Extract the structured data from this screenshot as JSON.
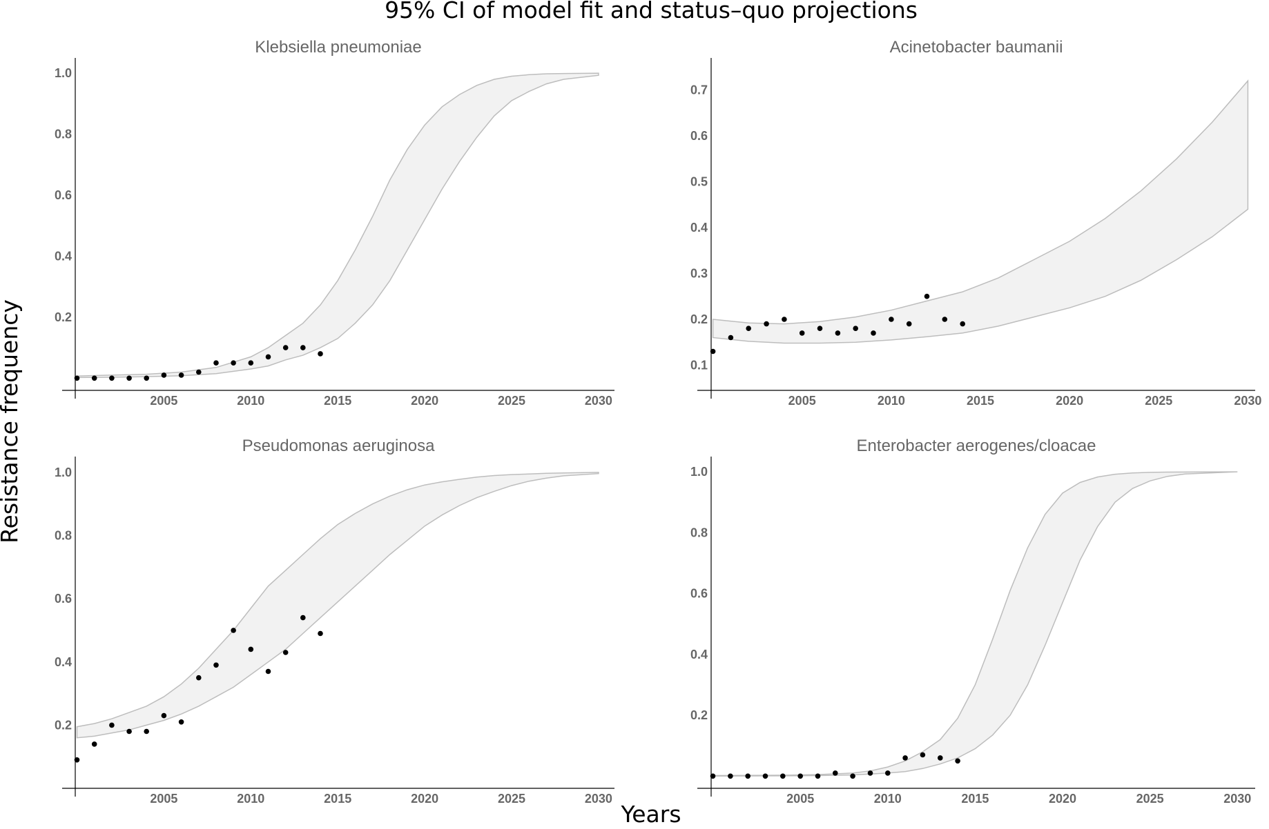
{
  "title": "95% CI of model fit and status–quo projections",
  "xlabel": "Years",
  "ylabel": "Resistance frequency",
  "chart_data": [
    {
      "type": "scatter",
      "title": "Klebsiella pneumoniae",
      "xlim": [
        1999.9,
        2030.6
      ],
      "ylim": [
        -0.04,
        1.05
      ],
      "x_ticks": [
        2005,
        2010,
        2015,
        2020,
        2025,
        2030
      ],
      "y_ticks": [
        0.2,
        0.4,
        0.6,
        0.8,
        1.0
      ],
      "y_tick_labels": [
        "0.2",
        "0.4",
        "0.6",
        "0.8",
        "1.0"
      ],
      "points": {
        "x": [
          2000,
          2001,
          2002,
          2003,
          2004,
          2005,
          2006,
          2007,
          2008,
          2009,
          2010,
          2011,
          2012,
          2013,
          2014
        ],
        "y": [
          0.0,
          0.0,
          0.0,
          0.0,
          0.0,
          0.01,
          0.01,
          0.02,
          0.05,
          0.05,
          0.05,
          0.07,
          0.1,
          0.1,
          0.08
        ]
      },
      "ci_upper": {
        "x": [
          2000,
          2002,
          2004,
          2006,
          2008,
          2010,
          2011,
          2012,
          2013,
          2014,
          2015,
          2016,
          2017,
          2018,
          2019,
          2020,
          2021,
          2022,
          2023,
          2024,
          2025,
          2026,
          2027,
          2028,
          2030
        ],
        "y": [
          0.007,
          0.01,
          0.013,
          0.02,
          0.035,
          0.07,
          0.1,
          0.14,
          0.18,
          0.24,
          0.32,
          0.42,
          0.53,
          0.65,
          0.75,
          0.83,
          0.89,
          0.93,
          0.96,
          0.98,
          0.99,
          0.995,
          0.998,
          0.999,
          1.0
        ]
      },
      "ci_lower": {
        "x": [
          2000,
          2002,
          2004,
          2006,
          2008,
          2010,
          2011,
          2012,
          2013,
          2014,
          2015,
          2016,
          2017,
          2018,
          2019,
          2020,
          2021,
          2022,
          2023,
          2024,
          2025,
          2026,
          2027,
          2028,
          2030
        ],
        "y": [
          0.002,
          0.003,
          0.005,
          0.008,
          0.015,
          0.03,
          0.04,
          0.06,
          0.075,
          0.1,
          0.13,
          0.18,
          0.24,
          0.32,
          0.42,
          0.52,
          0.62,
          0.71,
          0.79,
          0.86,
          0.91,
          0.94,
          0.965,
          0.98,
          0.993
        ]
      }
    },
    {
      "type": "scatter",
      "title": "Acinetobacter baumanii",
      "xlim": [
        1999.9,
        2030.1
      ],
      "ylim": [
        0.045,
        0.77
      ],
      "x_ticks": [
        2005,
        2010,
        2015,
        2020,
        2025,
        2030
      ],
      "y_ticks": [
        0.1,
        0.2,
        0.3,
        0.4,
        0.5,
        0.6,
        0.7
      ],
      "y_tick_labels": [
        "0.1",
        "0.2",
        "0.3",
        "0.4",
        "0.5",
        "0.6",
        "0.7"
      ],
      "points": {
        "x": [
          2000,
          2001,
          2002,
          2003,
          2004,
          2005,
          2006,
          2007,
          2008,
          2009,
          2010,
          2011,
          2012,
          2013,
          2014
        ],
        "y": [
          0.13,
          0.16,
          0.18,
          0.19,
          0.2,
          0.17,
          0.18,
          0.17,
          0.18,
          0.17,
          0.2,
          0.19,
          0.25,
          0.2,
          0.19
        ]
      },
      "ci_upper": {
        "x": [
          2000,
          2002,
          2004,
          2006,
          2008,
          2010,
          2012,
          2014,
          2016,
          2018,
          2020,
          2022,
          2024,
          2026,
          2028,
          2030
        ],
        "y": [
          0.2,
          0.192,
          0.19,
          0.195,
          0.205,
          0.22,
          0.24,
          0.26,
          0.29,
          0.33,
          0.37,
          0.42,
          0.48,
          0.55,
          0.63,
          0.72
        ]
      },
      "ci_lower": {
        "x": [
          2000,
          2002,
          2004,
          2006,
          2008,
          2010,
          2012,
          2014,
          2016,
          2018,
          2020,
          2022,
          2024,
          2026,
          2028,
          2030
        ],
        "y": [
          0.16,
          0.152,
          0.148,
          0.148,
          0.15,
          0.155,
          0.162,
          0.17,
          0.185,
          0.205,
          0.225,
          0.25,
          0.285,
          0.33,
          0.38,
          0.44
        ]
      }
    },
    {
      "type": "scatter",
      "title": "Pseudomonas aeruginosa",
      "xlim": [
        1999.9,
        2030.6
      ],
      "ylim": [
        0.0,
        1.05
      ],
      "x_ticks": [
        2005,
        2010,
        2015,
        2020,
        2025,
        2030
      ],
      "y_ticks": [
        0.2,
        0.4,
        0.6,
        0.8,
        1.0
      ],
      "y_tick_labels": [
        "0.2",
        "0.4",
        "0.6",
        "0.8",
        "1.0"
      ],
      "points": {
        "x": [
          2000,
          2001,
          2002,
          2003,
          2004,
          2005,
          2006,
          2007,
          2008,
          2009,
          2010,
          2011,
          2012,
          2013,
          2014
        ],
        "y": [
          0.09,
          0.14,
          0.2,
          0.18,
          0.18,
          0.23,
          0.21,
          0.35,
          0.39,
          0.5,
          0.44,
          0.37,
          0.43,
          0.54,
          0.49
        ]
      },
      "ci_upper": {
        "x": [
          2000,
          2001,
          2002,
          2003,
          2004,
          2005,
          2006,
          2007,
          2008,
          2009,
          2010,
          2011,
          2012,
          2013,
          2014,
          2015,
          2016,
          2017,
          2018,
          2019,
          2020,
          2021,
          2022,
          2023,
          2024,
          2025,
          2026,
          2027,
          2028,
          2030
        ],
        "y": [
          0.195,
          0.205,
          0.22,
          0.24,
          0.26,
          0.29,
          0.33,
          0.38,
          0.44,
          0.5,
          0.57,
          0.64,
          0.69,
          0.74,
          0.79,
          0.835,
          0.87,
          0.9,
          0.925,
          0.945,
          0.96,
          0.97,
          0.978,
          0.985,
          0.99,
          0.993,
          0.995,
          0.997,
          0.998,
          1.0
        ]
      },
      "ci_lower": {
        "x": [
          2000,
          2001,
          2002,
          2003,
          2004,
          2005,
          2006,
          2007,
          2008,
          2009,
          2010,
          2011,
          2012,
          2013,
          2014,
          2015,
          2016,
          2017,
          2018,
          2019,
          2020,
          2021,
          2022,
          2023,
          2024,
          2025,
          2026,
          2027,
          2028,
          2030
        ],
        "y": [
          0.16,
          0.165,
          0.175,
          0.185,
          0.2,
          0.215,
          0.235,
          0.26,
          0.29,
          0.32,
          0.36,
          0.4,
          0.44,
          0.49,
          0.54,
          0.59,
          0.64,
          0.69,
          0.74,
          0.785,
          0.83,
          0.865,
          0.895,
          0.92,
          0.94,
          0.958,
          0.972,
          0.982,
          0.989,
          0.996
        ]
      }
    },
    {
      "type": "scatter",
      "title": "Enterobacter aerogenes/cloacae",
      "xlim": [
        1999.9,
        2030.7
      ],
      "ylim": [
        -0.04,
        1.05
      ],
      "x_ticks": [
        2005,
        2010,
        2015,
        2020,
        2025,
        2030
      ],
      "y_ticks": [
        0.2,
        0.4,
        0.6,
        0.8,
        1.0
      ],
      "y_tick_labels": [
        "0.2",
        "0.4",
        "0.6",
        "0.8",
        "1.0"
      ],
      "points": {
        "x": [
          2000,
          2001,
          2002,
          2003,
          2004,
          2005,
          2006,
          2007,
          2008,
          2009,
          2010,
          2011,
          2012,
          2013,
          2014
        ],
        "y": [
          0.0,
          0.0,
          0.0,
          0.0,
          0.0,
          0.0,
          0.0,
          0.01,
          0.0,
          0.01,
          0.01,
          0.06,
          0.07,
          0.06,
          0.05
        ]
      },
      "ci_upper": {
        "x": [
          2000,
          2004,
          2006,
          2008,
          2009,
          2010,
          2011,
          2012,
          2013,
          2014,
          2015,
          2016,
          2017,
          2018,
          2019,
          2020,
          2021,
          2022,
          2023,
          2024,
          2025,
          2026,
          2030
        ],
        "y": [
          0.002,
          0.003,
          0.005,
          0.01,
          0.017,
          0.03,
          0.05,
          0.08,
          0.12,
          0.19,
          0.3,
          0.45,
          0.61,
          0.75,
          0.86,
          0.93,
          0.965,
          0.983,
          0.992,
          0.996,
          0.998,
          0.999,
          1.0
        ]
      },
      "ci_lower": {
        "x": [
          2000,
          2004,
          2006,
          2008,
          2010,
          2011,
          2012,
          2013,
          2014,
          2015,
          2016,
          2017,
          2018,
          2019,
          2020,
          2021,
          2022,
          2023,
          2024,
          2025,
          2026,
          2027,
          2030
        ],
        "y": [
          0.0,
          0.001,
          0.002,
          0.004,
          0.01,
          0.015,
          0.025,
          0.04,
          0.06,
          0.09,
          0.135,
          0.2,
          0.3,
          0.43,
          0.57,
          0.71,
          0.82,
          0.9,
          0.945,
          0.97,
          0.985,
          0.993,
          1.0
        ]
      }
    }
  ]
}
